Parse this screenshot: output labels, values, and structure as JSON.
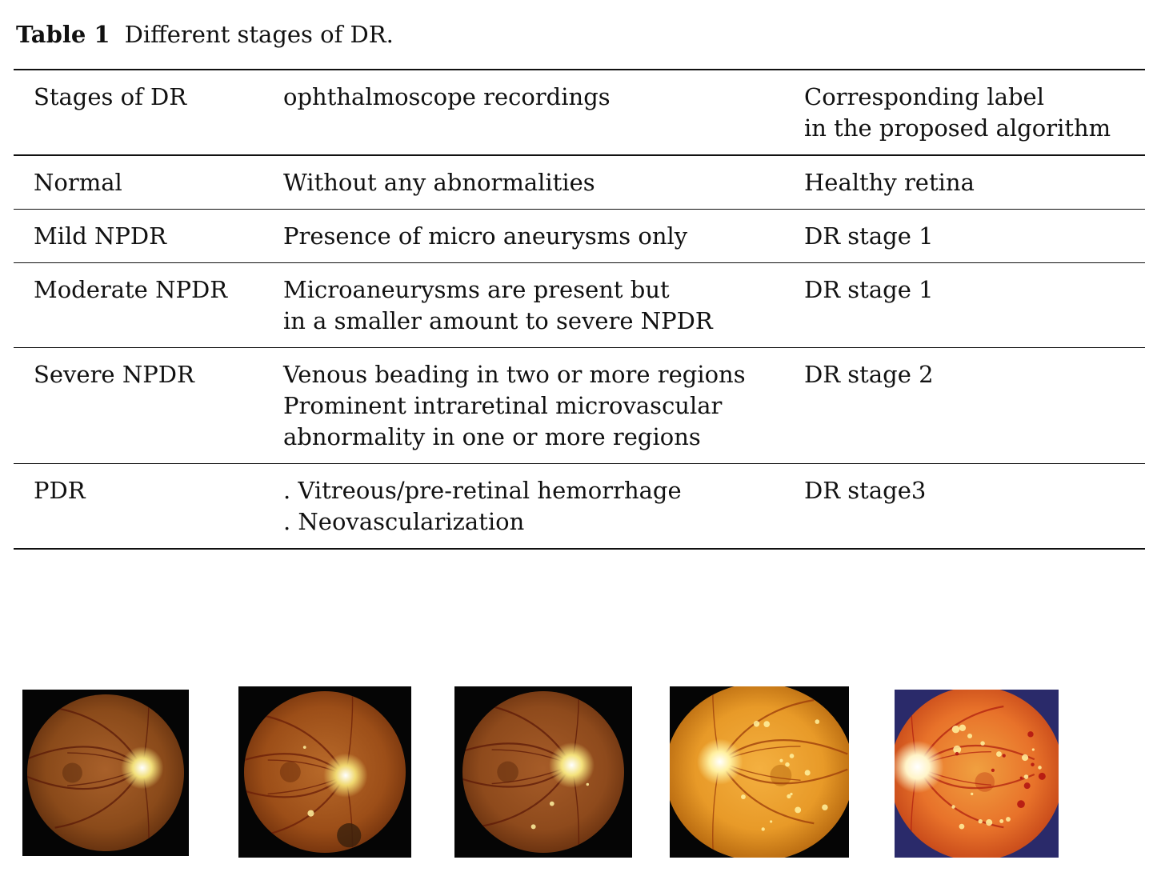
{
  "caption": {
    "label": "Table 1",
    "text": "Different stages of DR."
  },
  "table": {
    "headers": [
      [
        "Stages of DR"
      ],
      [
        "ophthalmoscope recordings"
      ],
      [
        "Corresponding label",
        "in the proposed algorithm"
      ]
    ],
    "rows": [
      {
        "stage": [
          "Normal"
        ],
        "recording": [
          "Without any abnormalities"
        ],
        "label": [
          "Healthy retina"
        ]
      },
      {
        "stage": [
          "Mild NPDR"
        ],
        "recording": [
          "Presence of micro aneurysms only"
        ],
        "label": [
          "DR stage 1"
        ]
      },
      {
        "stage": [
          "Moderate NPDR"
        ],
        "recording": [
          "Microaneurysms are present but",
          "in a smaller amount to severe NPDR"
        ],
        "label": [
          "DR stage 1"
        ]
      },
      {
        "stage": [
          "Severe NPDR"
        ],
        "recording": [
          "Venous beading in two or more regions",
          "Prominent intraretinal microvascular",
          "abnormality in one or more regions"
        ],
        "label": [
          "DR stage 2"
        ]
      },
      {
        "stage": [
          "PDR"
        ],
        "recording": [
          ". Vitreous/pre-retinal hemorrhage",
          ". Neovascularization"
        ],
        "label": [
          "DR stage3"
        ]
      }
    ]
  },
  "images": [
    {
      "name": "fundus-image-1",
      "palette": {
        "bg": "#050505",
        "edge": "#5a2a0c",
        "mid": "#8a4a1a",
        "center": "#a8602a",
        "disc": "#f2e07a",
        "vessel": "#5a1a08"
      }
    },
    {
      "name": "fundus-image-2",
      "palette": {
        "bg": "#050505",
        "edge": "#6a2c0a",
        "mid": "#9c4e18",
        "center": "#b86a2a",
        "disc": "#f0d870",
        "vessel": "#6a1e08"
      }
    },
    {
      "name": "fundus-image-3",
      "palette": {
        "bg": "#050505",
        "edge": "#5e2a0c",
        "mid": "#8e4a1c",
        "center": "#a65c28",
        "disc": "#f4e27c",
        "vessel": "#5c1a08"
      }
    },
    {
      "name": "fundus-image-4",
      "palette": {
        "bg": "#050505",
        "edge": "#b86a10",
        "mid": "#e89a28",
        "center": "#f4b040",
        "disc": "#fff0a0",
        "vessel": "#9a3a0a"
      }
    },
    {
      "name": "fundus-image-5",
      "palette": {
        "bg": "#2a2a6a",
        "edge": "#c84a1a",
        "mid": "#e8722a",
        "center": "#f0a040",
        "disc": "#fff4c8",
        "vessel": "#b02010"
      }
    }
  ]
}
